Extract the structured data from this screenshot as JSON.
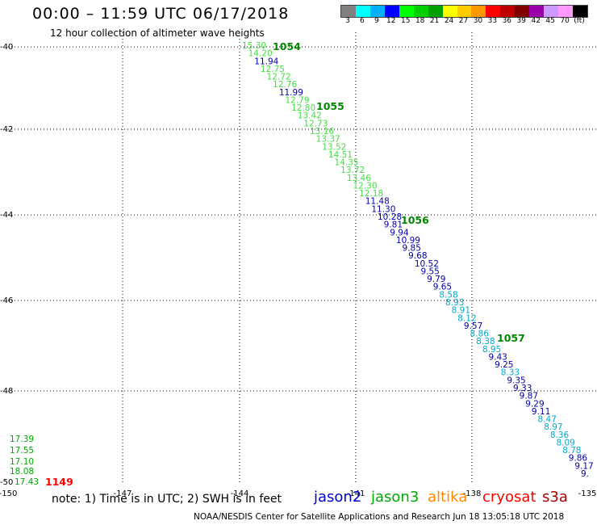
{
  "header": {
    "title": "00:00 – 11:59 UTC 06/17/2018",
    "subtitle": "12 hour collection of altimeter wave heights"
  },
  "legend": {
    "colors": [
      "#808080",
      "#00ffff",
      "#00b0ff",
      "#0000ff",
      "#00ff00",
      "#00d000",
      "#00a000",
      "#ffff00",
      "#ffcc00",
      "#ff9900",
      "#ff0000",
      "#c00000",
      "#800000",
      "#9900aa",
      "#cc99ff",
      "#ff99ff",
      "#000000"
    ],
    "labels": [
      "3",
      "6",
      "9",
      "12",
      "15",
      "18",
      "21",
      "24",
      "27",
      "30",
      "33",
      "36",
      "39",
      "42",
      "45",
      "70",
      "(ft)"
    ]
  },
  "axes": {
    "lat_labels": [
      "-40",
      "-42",
      "-44",
      "-46",
      "-48",
      "-50"
    ],
    "lon_labels": [
      "-150",
      "-147",
      "-144",
      "-141",
      "-138",
      "-135"
    ]
  },
  "swh_colors": {
    "lightgreen": "#44dd44",
    "darkblue": "#0000aa",
    "cyan": "#00aacc",
    "green": "#00aa00",
    "red": "#ff0000"
  },
  "observations": [
    {
      "t": "15.30",
      "c": "lightgreen"
    },
    {
      "t": "14.20",
      "c": "lightgreen"
    },
    {
      "t": "11.94",
      "c": "darkblue"
    },
    {
      "t": "12.75",
      "c": "lightgreen"
    },
    {
      "t": "12.72",
      "c": "lightgreen"
    },
    {
      "t": "12.76",
      "c": "lightgreen"
    },
    {
      "t": "11.99",
      "c": "darkblue"
    },
    {
      "t": "12.79",
      "c": "lightgreen"
    },
    {
      "t": "12.80",
      "c": "lightgreen"
    },
    {
      "t": "13.42",
      "c": "lightgreen"
    },
    {
      "t": "12.73",
      "c": "lightgreen"
    },
    {
      "t": "13.16",
      "c": "lightgreen"
    },
    {
      "t": "13.37",
      "c": "lightgreen"
    },
    {
      "t": "13.52",
      "c": "lightgreen"
    },
    {
      "t": "14.51",
      "c": "lightgreen"
    },
    {
      "t": "14.35",
      "c": "lightgreen"
    },
    {
      "t": "13.72",
      "c": "lightgreen"
    },
    {
      "t": "13.46",
      "c": "lightgreen"
    },
    {
      "t": "12.30",
      "c": "lightgreen"
    },
    {
      "t": "12.18",
      "c": "lightgreen"
    },
    {
      "t": "11.48",
      "c": "darkblue"
    },
    {
      "t": "11.30",
      "c": "darkblue"
    },
    {
      "t": "10.28",
      "c": "darkblue"
    },
    {
      "t": "9.81",
      "c": "darkblue"
    },
    {
      "t": "9.94",
      "c": "darkblue"
    },
    {
      "t": "10.99",
      "c": "darkblue"
    },
    {
      "t": "9.85",
      "c": "darkblue"
    },
    {
      "t": "9.68",
      "c": "darkblue"
    },
    {
      "t": "10.52",
      "c": "darkblue"
    },
    {
      "t": "9.55",
      "c": "darkblue"
    },
    {
      "t": "9.79",
      "c": "darkblue"
    },
    {
      "t": "9.65",
      "c": "darkblue"
    },
    {
      "t": "8.58",
      "c": "cyan"
    },
    {
      "t": "8.93",
      "c": "cyan"
    },
    {
      "t": "8.91",
      "c": "cyan"
    },
    {
      "t": "8.12",
      "c": "cyan"
    },
    {
      "t": "9.57",
      "c": "darkblue"
    },
    {
      "t": "8.86",
      "c": "cyan"
    },
    {
      "t": "8.38",
      "c": "cyan"
    },
    {
      "t": "8.95",
      "c": "cyan"
    },
    {
      "t": "9.43",
      "c": "darkblue"
    },
    {
      "t": "9.25",
      "c": "darkblue"
    },
    {
      "t": "8.33",
      "c": "cyan"
    },
    {
      "t": "9.35",
      "c": "darkblue"
    },
    {
      "t": "9.33",
      "c": "darkblue"
    },
    {
      "t": "9.87",
      "c": "darkblue"
    },
    {
      "t": "9.29",
      "c": "darkblue"
    },
    {
      "t": "9.11",
      "c": "darkblue"
    },
    {
      "t": "8.47",
      "c": "cyan"
    },
    {
      "t": "8.97",
      "c": "cyan"
    },
    {
      "t": "8.36",
      "c": "cyan"
    },
    {
      "t": "8.09",
      "c": "cyan"
    },
    {
      "t": "8.78",
      "c": "cyan"
    },
    {
      "t": "9.86",
      "c": "darkblue"
    },
    {
      "t": "9.17",
      "c": "darkblue"
    },
    {
      "t": "9.",
      "c": "darkblue"
    }
  ],
  "pass_labels": [
    "1054",
    "1055",
    "1056",
    "1057"
  ],
  "corner_observations": [
    {
      "t": "17.39",
      "c": "green"
    },
    {
      "t": "17.55",
      "c": "green"
    },
    {
      "t": "17.10",
      "c": "green"
    },
    {
      "t": "18.08",
      "c": "green"
    },
    {
      "t": "17.43",
      "c": "green"
    }
  ],
  "corner_pass_label": "1149",
  "footer": {
    "note": "note: 1) Time is in UTC; 2) SWH is in feet",
    "satellites": [
      {
        "name": "jason2",
        "color": "#0000cc"
      },
      {
        "name": "jason3",
        "color": "#00aa00"
      },
      {
        "name": "altika",
        "color": "#ff8800"
      },
      {
        "name": "cryosat",
        "color": "#ff0000"
      },
      {
        "name": "s3a",
        "color": "#aa0000"
      }
    ],
    "credit": "NOAA/NESDIS Center for Satellite Applications and Research    Jun 18 13:05:18 UTC 2018"
  }
}
